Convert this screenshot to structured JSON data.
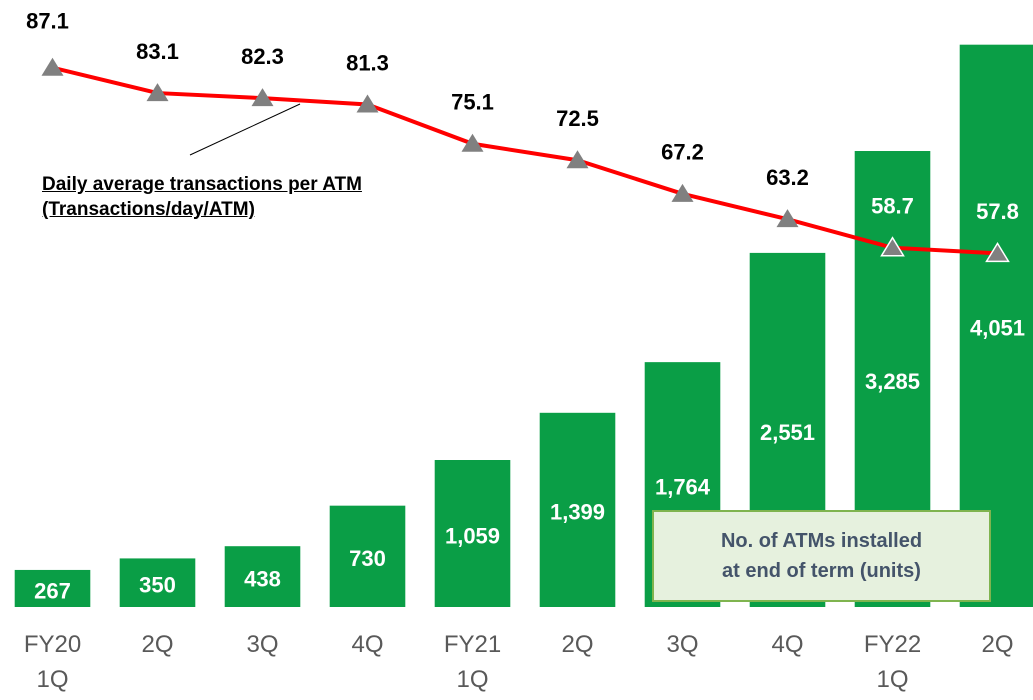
{
  "chart_data": {
    "type": "bar_line",
    "categories": [
      "FY20\n1Q",
      "2Q",
      "3Q",
      "4Q",
      "FY21\n1Q",
      "2Q",
      "3Q",
      "4Q",
      "FY22\n1Q",
      "2Q"
    ],
    "series": [
      {
        "name": "No. of ATMs installed\nat end of term (units)",
        "type": "bar",
        "color": "#0a9e46",
        "values": [
          267,
          350,
          438,
          730,
          1059,
          1399,
          1764,
          2551,
          3285,
          4051
        ],
        "value_labels": [
          "267",
          "350",
          "438",
          "730",
          "1,059",
          "1,399",
          "1,764",
          "2,551",
          "3,285",
          "4,051"
        ]
      },
      {
        "name": "Daily average transactions per ATM\n(Transactions/day/ATM)",
        "type": "line",
        "axis": "y2",
        "color": "#ff0000",
        "marker_color": "#808080",
        "values": [
          87.1,
          83.1,
          82.3,
          81.3,
          75.1,
          72.5,
          67.2,
          63.2,
          58.7,
          57.8
        ]
      }
    ],
    "ylim": [
      0,
      4200
    ],
    "y2lim": [
      2,
      94
    ]
  }
}
